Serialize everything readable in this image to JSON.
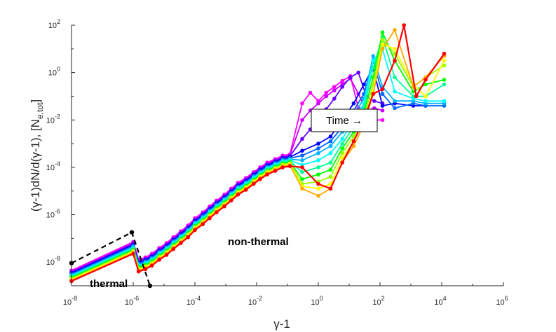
{
  "chart_data": {
    "type": "line",
    "x_scale": "log",
    "y_scale": "log",
    "xlim": [
      1e-08,
      1000000.0
    ],
    "ylim": [
      1e-09,
      100
    ],
    "xlabel": "γ-1",
    "ylabel": "(γ-1)dN/d(γ-1), [N",
    "ylabel_sub": "e,tot",
    "ylabel_close": "]",
    "x_ticks": [
      {
        "value": 1e-08,
        "mant": "10",
        "exp": "-8"
      },
      {
        "value": 1e-06,
        "mant": "10",
        "exp": "-6"
      },
      {
        "value": 0.0001,
        "mant": "10",
        "exp": "-4"
      },
      {
        "value": 0.01,
        "mant": "10",
        "exp": "-2"
      },
      {
        "value": 1,
        "mant": "10",
        "exp": "0"
      },
      {
        "value": 100.0,
        "mant": "10",
        "exp": "2"
      },
      {
        "value": 10000.0,
        "mant": "10",
        "exp": "4"
      },
      {
        "value": 1000000.0,
        "mant": "10",
        "exp": "6"
      }
    ],
    "y_ticks": [
      {
        "value": 1e-08,
        "mant": "10",
        "exp": "-8"
      },
      {
        "value": 1e-06,
        "mant": "10",
        "exp": "-6"
      },
      {
        "value": 0.0001,
        "mant": "10",
        "exp": "-4"
      },
      {
        "value": 0.01,
        "mant": "10",
        "exp": "-2"
      },
      {
        "value": 1,
        "mant": "10",
        "exp": "0"
      },
      {
        "value": 100,
        "mant": "10",
        "exp": "2"
      }
    ],
    "grid": false,
    "annotations": {
      "time_box": "Time →",
      "non_thermal": "non-thermal",
      "thermal": "thermal"
    },
    "thermal_curve": {
      "color": "#000000",
      "style": "dashed",
      "points": [
        [
          1e-08,
          9e-09
        ],
        [
          9e-07,
          1.8e-07
        ],
        [
          3.5e-06,
          1e-09
        ]
      ]
    },
    "low_gamma_x": [
      1e-08,
      1e-06,
      1.5e-06,
      2.5e-06,
      4e-06,
      7e-06,
      1.2e-05,
      2e-05,
      3.5e-05,
      6e-05,
      0.0001,
      0.00018,
      0.0003,
      0.0005,
      0.0009,
      0.0015,
      0.0025,
      0.0045,
      0.008,
      0.013,
      0.022,
      0.04,
      0.07,
      0.12
    ],
    "low_gamma_base_logy": [
      -8.4,
      -7.2,
      -7.95,
      -7.85,
      -7.7,
      -7.45,
      -7.25,
      -7.0,
      -6.75,
      -6.5,
      -6.2,
      -5.95,
      -5.7,
      -5.45,
      -5.2,
      -4.95,
      -4.7,
      -4.5,
      -4.25,
      -4.05,
      -3.85,
      -3.7,
      -3.55,
      -3.5
    ],
    "series": [
      {
        "color": "#ff00ff",
        "high_x": [
          0.3,
          0.55,
          1,
          1.8,
          3.3,
          6,
          11,
          20,
          36,
          65,
          120
        ],
        "high_logy": [
          -1.3,
          -0.85,
          -1.2,
          -0.85,
          -0.6,
          -0.35,
          -0.15,
          -1.5,
          -2.1,
          -2.0,
          -2.0
        ]
      },
      {
        "color": "#cc00ff",
        "high_x": [
          0.3,
          0.55,
          1,
          1.8,
          3.3,
          6,
          11,
          20,
          36,
          65,
          120
        ],
        "high_logy": [
          -2.0,
          -1.6,
          -1.3,
          -1.0,
          -0.75,
          -0.5,
          -0.25,
          -0.9,
          -1.6,
          -1.5,
          -1.6
        ]
      },
      {
        "color": "#6600ff",
        "high_x": [
          0.3,
          0.55,
          1,
          1.8,
          3.3,
          6,
          11,
          20,
          36,
          65,
          120
        ],
        "high_logy": [
          -2.8,
          -2.4,
          -2.0,
          -1.55,
          -1.1,
          -0.6,
          -0.2,
          0.0,
          -1.0,
          -1.2,
          -1.3
        ]
      },
      {
        "color": "#0000ff",
        "high_x": [
          0.3,
          1,
          2.5,
          6,
          14,
          30,
          60,
          120,
          300,
          1200,
          3000
        ],
        "high_logy": [
          -3.3,
          -3.0,
          -2.7,
          -2.0,
          -1.3,
          -0.5,
          0.2,
          -1.4,
          -1.3,
          -1.4,
          -1.4
        ]
      },
      {
        "color": "#0066ff",
        "high_x": [
          0.3,
          1,
          2.5,
          6,
          14,
          30,
          60,
          120,
          300,
          1200,
          3000,
          12000
        ],
        "high_logy": [
          -3.5,
          -3.2,
          -2.9,
          -2.3,
          -1.6,
          -0.9,
          0.5,
          -0.9,
          -1.5,
          -1.3,
          -1.4,
          -1.4
        ]
      },
      {
        "color": "#00b3ff",
        "high_x": [
          0.3,
          1,
          2.5,
          6,
          14,
          30,
          60,
          120,
          300,
          1200,
          3000,
          12000
        ],
        "high_logy": [
          -3.7,
          -3.4,
          -3.1,
          -2.5,
          -1.8,
          -1.1,
          0.7,
          -0.6,
          -1.2,
          -1.2,
          -1.3,
          -1.3
        ]
      },
      {
        "color": "#00ffff",
        "high_x": [
          0.3,
          1,
          2.5,
          6,
          14,
          30,
          60,
          120,
          300,
          1200,
          3000,
          12000
        ],
        "high_logy": [
          -3.9,
          -3.7,
          -3.4,
          -2.8,
          -2.0,
          -1.3,
          0.5,
          1.0,
          -0.8,
          -1.1,
          -1.2,
          -1.2
        ]
      },
      {
        "color": "#00ff99",
        "high_x": [
          0.3,
          1,
          2.5,
          6,
          14,
          30,
          60,
          120,
          300,
          1200,
          3000,
          12000
        ],
        "high_logy": [
          -4.2,
          -4.0,
          -3.8,
          -3.0,
          -2.3,
          -1.5,
          0.2,
          1.5,
          -0.2,
          -1.0,
          -1.0,
          -0.5
        ]
      },
      {
        "color": "#00ff00",
        "high_x": [
          0.3,
          1,
          2.5,
          6,
          14,
          30,
          60,
          120,
          300,
          1200,
          3000,
          12000
        ],
        "high_logy": [
          -4.5,
          -4.3,
          -4.1,
          -3.2,
          -2.5,
          -1.7,
          -0.2,
          1.7,
          0.5,
          -0.8,
          -0.5,
          -0.3
        ]
      },
      {
        "color": "#99ff00",
        "high_x": [
          0.3,
          1,
          2.5,
          6,
          14,
          30,
          60,
          120,
          300,
          1200,
          3000,
          12000
        ],
        "high_logy": [
          -4.7,
          -4.6,
          -4.4,
          -3.4,
          -2.7,
          -1.9,
          -0.5,
          1.4,
          0.8,
          -0.6,
          -0.2,
          0.3
        ]
      },
      {
        "color": "#ffff00",
        "high_x": [
          0.3,
          1,
          2.5,
          6,
          14,
          30,
          60,
          120,
          300,
          1200,
          3000,
          12000
        ],
        "high_logy": [
          -4.8,
          -4.9,
          -4.7,
          -3.6,
          -2.9,
          -2.0,
          -0.8,
          1.2,
          1.0,
          -0.5,
          -1.0,
          0.5
        ]
      },
      {
        "color": "#ffaa00",
        "high_x": [
          0.3,
          1,
          2.5,
          6,
          14,
          30,
          60,
          120,
          300,
          1200,
          3000,
          12000
        ],
        "high_logy": [
          -4.9,
          -5.2,
          -4.9,
          -3.8,
          -3.1,
          -2.2,
          -0.9,
          1.0,
          1.8,
          -0.6,
          -0.2,
          0.7
        ]
      },
      {
        "color": "#ff0000",
        "high_x": [
          0.3,
          1,
          2.5,
          6,
          14,
          30,
          60,
          120,
          300,
          600,
          1500,
          3000,
          12000
        ],
        "high_logy": [
          -4.0,
          -4.7,
          -4.9,
          -3.8,
          -2.9,
          -2.0,
          -0.9,
          -0.7,
          0.5,
          2.0,
          -1.0,
          -0.3,
          0.8
        ]
      }
    ]
  }
}
